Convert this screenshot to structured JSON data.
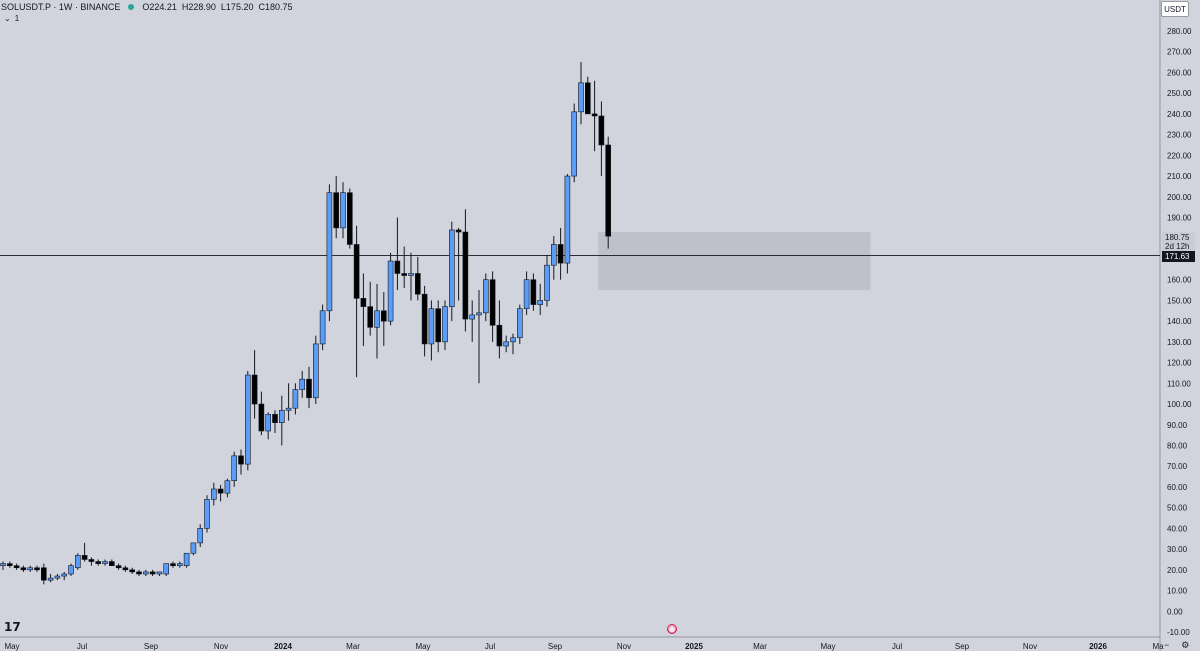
{
  "header": {
    "symbol": "SOLUSDT.P · 1W · BINANCE",
    "open": "O224.21",
    "high": "H228.90",
    "low": "L175.20",
    "close": "C180.75",
    "indicator_count": "1",
    "collapse_icon": "chevron-down-icon"
  },
  "price_axis": {
    "currency": "USDT",
    "close_label": "180.75",
    "countdown": "2d 12h",
    "crosshair_label": "171.63"
  },
  "icons": {
    "logo": "tradingview-logo",
    "event": "event-icon",
    "minus": "minus-icon",
    "settings": "gear-icon"
  },
  "colors": {
    "background": "#d1d4dc",
    "bullish": "#5b9cf6",
    "bearish": "#000000",
    "wick": "#131722",
    "zone": "#b9bcc4"
  },
  "chart_data": {
    "type": "candlestick",
    "title": "",
    "xlabel": "",
    "ylabel": "",
    "ylim": [
      -10,
      290
    ],
    "y_ticks": [
      "280.00",
      "270.00",
      "260.00",
      "250.00",
      "240.00",
      "230.00",
      "220.00",
      "210.00",
      "200.00",
      "190.00",
      "180.00",
      "170.00",
      "160.00",
      "150.00",
      "140.00",
      "130.00",
      "120.00",
      "110.00",
      "100.00",
      "90.00",
      "80.00",
      "70.00",
      "60.00",
      "50.00",
      "40.00",
      "30.00",
      "20.00",
      "10.00",
      "0.00",
      "-10.00"
    ],
    "x_ticks": [
      "May",
      "Jul",
      "Sep",
      "Nov",
      "2024",
      "Mar",
      "May",
      "Jul",
      "Sep",
      "Nov",
      "2025",
      "Mar",
      "May",
      "Jul",
      "Sep",
      "Nov",
      "2026",
      "Ma"
    ],
    "crosshair_price": 171.63,
    "close_price": 180.75,
    "zone": {
      "price_top": 183,
      "price_bottom": 155,
      "from_week": 88,
      "to_week": 128
    },
    "candles": [
      {
        "o": 22,
        "h": 24,
        "l": 20,
        "c": 23
      },
      {
        "o": 23,
        "h": 24,
        "l": 21,
        "c": 22
      },
      {
        "o": 22,
        "h": 23,
        "l": 20,
        "c": 21
      },
      {
        "o": 21,
        "h": 22,
        "l": 19,
        "c": 20
      },
      {
        "o": 20,
        "h": 22,
        "l": 19,
        "c": 21
      },
      {
        "o": 21,
        "h": 22,
        "l": 19,
        "c": 20
      },
      {
        "o": 21,
        "h": 23,
        "l": 13,
        "c": 15
      },
      {
        "o": 15,
        "h": 18,
        "l": 14,
        "c": 16
      },
      {
        "o": 16,
        "h": 18,
        "l": 15,
        "c": 17
      },
      {
        "o": 17,
        "h": 19,
        "l": 15,
        "c": 18
      },
      {
        "o": 18,
        "h": 23,
        "l": 17,
        "c": 22
      },
      {
        "o": 21,
        "h": 28,
        "l": 20,
        "c": 27
      },
      {
        "o": 27,
        "h": 33,
        "l": 24,
        "c": 25
      },
      {
        "o": 25,
        "h": 26,
        "l": 22,
        "c": 24
      },
      {
        "o": 24,
        "h": 25,
        "l": 22,
        "c": 23
      },
      {
        "o": 23,
        "h": 25,
        "l": 22,
        "c": 24
      },
      {
        "o": 24,
        "h": 25,
        "l": 22,
        "c": 22
      },
      {
        "o": 22,
        "h": 23,
        "l": 20,
        "c": 21
      },
      {
        "o": 21,
        "h": 22,
        "l": 19,
        "c": 20
      },
      {
        "o": 20,
        "h": 21,
        "l": 18,
        "c": 19
      },
      {
        "o": 19,
        "h": 20,
        "l": 17,
        "c": 18
      },
      {
        "o": 18,
        "h": 20,
        "l": 17,
        "c": 19
      },
      {
        "o": 19,
        "h": 20,
        "l": 17,
        "c": 18
      },
      {
        "o": 18,
        "h": 19,
        "l": 17,
        "c": 19
      },
      {
        "o": 18,
        "h": 23,
        "l": 17,
        "c": 23
      },
      {
        "o": 23,
        "h": 24,
        "l": 21,
        "c": 22
      },
      {
        "o": 22,
        "h": 24,
        "l": 21,
        "c": 23
      },
      {
        "o": 22,
        "h": 28,
        "l": 21,
        "c": 28
      },
      {
        "o": 28,
        "h": 33,
        "l": 27,
        "c": 33
      },
      {
        "o": 33,
        "h": 42,
        "l": 31,
        "c": 40
      },
      {
        "o": 40,
        "h": 56,
        "l": 38,
        "c": 54
      },
      {
        "o": 54,
        "h": 62,
        "l": 51,
        "c": 59
      },
      {
        "o": 59,
        "h": 61,
        "l": 53,
        "c": 57
      },
      {
        "o": 57,
        "h": 64,
        "l": 55,
        "c": 63
      },
      {
        "o": 63,
        "h": 77,
        "l": 60,
        "c": 75
      },
      {
        "o": 75,
        "h": 78,
        "l": 66,
        "c": 71
      },
      {
        "o": 71,
        "h": 116,
        "l": 68,
        "c": 114
      },
      {
        "o": 114,
        "h": 126,
        "l": 93,
        "c": 100
      },
      {
        "o": 100,
        "h": 106,
        "l": 85,
        "c": 87
      },
      {
        "o": 87,
        "h": 96,
        "l": 83,
        "c": 95
      },
      {
        "o": 95,
        "h": 97,
        "l": 86,
        "c": 91
      },
      {
        "o": 91,
        "h": 104,
        "l": 80,
        "c": 97
      },
      {
        "o": 97,
        "h": 110,
        "l": 92,
        "c": 98
      },
      {
        "o": 98,
        "h": 110,
        "l": 95,
        "c": 107
      },
      {
        "o": 107,
        "h": 116,
        "l": 103,
        "c": 112
      },
      {
        "o": 112,
        "h": 118,
        "l": 98,
        "c": 103
      },
      {
        "o": 103,
        "h": 133,
        "l": 100,
        "c": 129
      },
      {
        "o": 129,
        "h": 148,
        "l": 126,
        "c": 145
      },
      {
        "o": 145,
        "h": 206,
        "l": 140,
        "c": 202
      },
      {
        "o": 202,
        "h": 210,
        "l": 180,
        "c": 185
      },
      {
        "o": 185,
        "h": 207,
        "l": 180,
        "c": 202
      },
      {
        "o": 202,
        "h": 204,
        "l": 175,
        "c": 177
      },
      {
        "o": 177,
        "h": 186,
        "l": 113,
        "c": 151
      },
      {
        "o": 151,
        "h": 163,
        "l": 128,
        "c": 147
      },
      {
        "o": 147,
        "h": 159,
        "l": 133,
        "c": 137
      },
      {
        "o": 137,
        "h": 158,
        "l": 122,
        "c": 145
      },
      {
        "o": 145,
        "h": 154,
        "l": 128,
        "c": 140
      },
      {
        "o": 140,
        "h": 173,
        "l": 138,
        "c": 169
      },
      {
        "o": 169,
        "h": 190,
        "l": 155,
        "c": 163
      },
      {
        "o": 163,
        "h": 176,
        "l": 156,
        "c": 162
      },
      {
        "o": 162,
        "h": 173,
        "l": 150,
        "c": 163
      },
      {
        "o": 163,
        "h": 171,
        "l": 150,
        "c": 153
      },
      {
        "o": 153,
        "h": 157,
        "l": 123,
        "c": 129
      },
      {
        "o": 129,
        "h": 150,
        "l": 121,
        "c": 146
      },
      {
        "o": 146,
        "h": 150,
        "l": 125,
        "c": 130
      },
      {
        "o": 130,
        "h": 150,
        "l": 126,
        "c": 147
      },
      {
        "o": 147,
        "h": 188,
        "l": 140,
        "c": 184
      },
      {
        "o": 184,
        "h": 185,
        "l": 150,
        "c": 183
      },
      {
        "o": 183,
        "h": 194,
        "l": 135,
        "c": 141
      },
      {
        "o": 141,
        "h": 150,
        "l": 130,
        "c": 143
      },
      {
        "o": 143,
        "h": 155,
        "l": 110,
        "c": 144
      },
      {
        "o": 144,
        "h": 163,
        "l": 140,
        "c": 160
      },
      {
        "o": 160,
        "h": 164,
        "l": 130,
        "c": 138
      },
      {
        "o": 138,
        "h": 150,
        "l": 122,
        "c": 128
      },
      {
        "o": 128,
        "h": 133,
        "l": 125,
        "c": 130
      },
      {
        "o": 130,
        "h": 134,
        "l": 124,
        "c": 132
      },
      {
        "o": 132,
        "h": 148,
        "l": 129,
        "c": 146
      },
      {
        "o": 146,
        "h": 164,
        "l": 143,
        "c": 160
      },
      {
        "o": 160,
        "h": 163,
        "l": 145,
        "c": 148
      },
      {
        "o": 148,
        "h": 158,
        "l": 143,
        "c": 150
      },
      {
        "o": 150,
        "h": 172,
        "l": 147,
        "c": 167
      },
      {
        "o": 167,
        "h": 181,
        "l": 160,
        "c": 177
      },
      {
        "o": 177,
        "h": 185,
        "l": 160,
        "c": 168
      },
      {
        "o": 168,
        "h": 211,
        "l": 163,
        "c": 210
      },
      {
        "o": 210,
        "h": 245,
        "l": 207,
        "c": 241
      },
      {
        "o": 241,
        "h": 265,
        "l": 235,
        "c": 255
      },
      {
        "o": 255,
        "h": 258,
        "l": 240,
        "c": 240
      },
      {
        "o": 240,
        "h": 256,
        "l": 222,
        "c": 239
      },
      {
        "o": 239,
        "h": 246,
        "l": 210,
        "c": 225
      },
      {
        "o": 225,
        "h": 229,
        "l": 175,
        "c": 181
      }
    ]
  }
}
